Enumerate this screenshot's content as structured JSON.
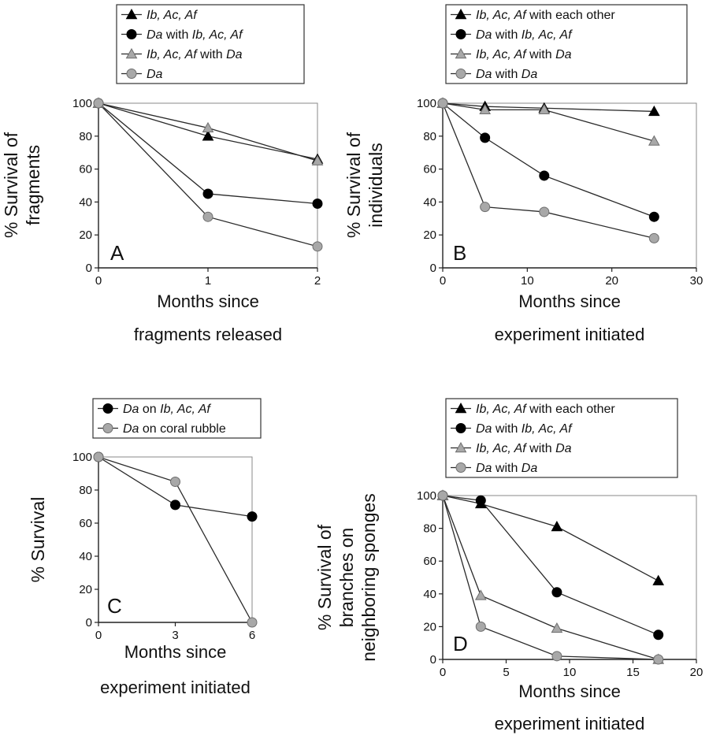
{
  "chart_data": [
    {
      "type": "line",
      "panel": "A",
      "xlabel": [
        "Months since",
        "fragments released"
      ],
      "ylabel": [
        "% Survival of",
        "fragments"
      ],
      "xlim": [
        0,
        2
      ],
      "ylim": [
        0,
        100
      ],
      "xticks": [
        0,
        1,
        2
      ],
      "yticks": [
        0,
        20,
        40,
        60,
        80,
        100
      ],
      "grid": false,
      "legend_position": "top",
      "series": [
        {
          "name": [
            {
              "t": "Ib, Ac, Af",
              "i": true
            }
          ],
          "marker": "triangle",
          "color": "#000000",
          "x": [
            0,
            1,
            2
          ],
          "y": [
            100,
            80,
            66
          ]
        },
        {
          "name": [
            {
              "t": "Da",
              "i": true
            },
            {
              "t": " with ",
              "i": false
            },
            {
              "t": "Ib, Ac, Af",
              "i": true
            }
          ],
          "marker": "circle",
          "color": "#000000",
          "x": [
            0,
            1,
            2
          ],
          "y": [
            100,
            45,
            39
          ]
        },
        {
          "name": [
            {
              "t": "Ib, Ac, Af",
              "i": true
            },
            {
              "t": " with ",
              "i": false
            },
            {
              "t": "Da",
              "i": true
            }
          ],
          "marker": "triangle",
          "color": "#a8a8a8",
          "x": [
            0,
            1,
            2
          ],
          "y": [
            100,
            85,
            65
          ]
        },
        {
          "name": [
            {
              "t": "Da",
              "i": true
            }
          ],
          "marker": "circle",
          "color": "#a8a8a8",
          "x": [
            0,
            1,
            2
          ],
          "y": [
            100,
            31,
            13
          ]
        }
      ]
    },
    {
      "type": "line",
      "panel": "B",
      "xlabel": [
        "Months since",
        "experiment initiated"
      ],
      "ylabel": [
        "% Survival of",
        "individuals"
      ],
      "xlim": [
        0,
        30
      ],
      "ylim": [
        0,
        100
      ],
      "xticks": [
        0,
        10,
        20,
        30
      ],
      "yticks": [
        0,
        20,
        40,
        60,
        80,
        100
      ],
      "grid": false,
      "legend_position": "top",
      "series": [
        {
          "name": [
            {
              "t": "Ib, Ac, Af",
              "i": true
            },
            {
              "t": " with each other",
              "i": false
            }
          ],
          "marker": "triangle",
          "color": "#000000",
          "x": [
            0,
            5,
            12,
            25
          ],
          "y": [
            100,
            98,
            97,
            95
          ]
        },
        {
          "name": [
            {
              "t": "Da",
              "i": true
            },
            {
              "t": " with ",
              "i": false
            },
            {
              "t": "Ib, Ac, Af",
              "i": true
            }
          ],
          "marker": "circle",
          "color": "#000000",
          "x": [
            0,
            5,
            12,
            25
          ],
          "y": [
            100,
            79,
            56,
            31
          ]
        },
        {
          "name": [
            {
              "t": "Ib, Ac, Af",
              "i": true
            },
            {
              "t": " with ",
              "i": false
            },
            {
              "t": "Da",
              "i": true
            }
          ],
          "marker": "triangle",
          "color": "#a8a8a8",
          "x": [
            0,
            5,
            12,
            25
          ],
          "y": [
            100,
            96,
            96,
            77
          ]
        },
        {
          "name": [
            {
              "t": "Da",
              "i": true
            },
            {
              "t": " with ",
              "i": false
            },
            {
              "t": "Da",
              "i": true
            }
          ],
          "marker": "circle",
          "color": "#a8a8a8",
          "x": [
            0,
            5,
            12,
            25
          ],
          "y": [
            100,
            37,
            34,
            18
          ]
        }
      ]
    },
    {
      "type": "line",
      "panel": "C",
      "xlabel": [
        "Months since",
        "experiment initiated"
      ],
      "ylabel": [
        "% Survival"
      ],
      "xlim": [
        0,
        6
      ],
      "ylim": [
        0,
        100
      ],
      "xticks": [
        0,
        3,
        6
      ],
      "yticks": [
        0,
        20,
        40,
        60,
        80,
        100
      ],
      "grid": false,
      "legend_position": "top",
      "series": [
        {
          "name": [
            {
              "t": "Da",
              "i": true
            },
            {
              "t": " on ",
              "i": false
            },
            {
              "t": "Ib, Ac, Af",
              "i": true
            }
          ],
          "marker": "circle",
          "color": "#000000",
          "x": [
            0,
            3,
            6
          ],
          "y": [
            100,
            71,
            64
          ]
        },
        {
          "name": [
            {
              "t": "Da",
              "i": true
            },
            {
              "t": " on coral rubble",
              "i": false
            }
          ],
          "marker": "circle",
          "color": "#a8a8a8",
          "x": [
            0,
            3,
            6
          ],
          "y": [
            100,
            85,
            0
          ]
        }
      ]
    },
    {
      "type": "line",
      "panel": "D",
      "xlabel": [
        "Months since",
        "experiment initiated"
      ],
      "ylabel": [
        "% Survival of",
        "branches on",
        "neighboring sponges"
      ],
      "xlim": [
        0,
        20
      ],
      "ylim": [
        0,
        100
      ],
      "xticks": [
        0,
        5,
        10,
        15,
        20
      ],
      "yticks": [
        0,
        20,
        40,
        60,
        80,
        100
      ],
      "grid": false,
      "legend_position": "top",
      "series": [
        {
          "name": [
            {
              "t": "Ib, Ac, Af",
              "i": true
            },
            {
              "t": " with each other",
              "i": false
            }
          ],
          "marker": "triangle",
          "color": "#000000",
          "x": [
            0,
            3,
            9,
            17
          ],
          "y": [
            100,
            95,
            81,
            48
          ]
        },
        {
          "name": [
            {
              "t": "Da",
              "i": true
            },
            {
              "t": " with ",
              "i": false
            },
            {
              "t": "Ib, Ac, Af",
              "i": true
            }
          ],
          "marker": "circle",
          "color": "#000000",
          "x": [
            0,
            3,
            9,
            17
          ],
          "y": [
            100,
            97,
            41,
            15
          ]
        },
        {
          "name": [
            {
              "t": "Ib, Ac, Af",
              "i": true
            },
            {
              "t": " with ",
              "i": false
            },
            {
              "t": "Da",
              "i": true
            }
          ],
          "marker": "triangle",
          "color": "#a8a8a8",
          "x": [
            0,
            3,
            9,
            17
          ],
          "y": [
            100,
            39,
            19,
            0
          ]
        },
        {
          "name": [
            {
              "t": "Da",
              "i": true
            },
            {
              "t": " with ",
              "i": false
            },
            {
              "t": "Da",
              "i": true
            }
          ],
          "marker": "circle",
          "color": "#a8a8a8",
          "x": [
            0,
            3,
            9,
            17
          ],
          "y": [
            100,
            20,
            2,
            0
          ]
        }
      ]
    }
  ]
}
